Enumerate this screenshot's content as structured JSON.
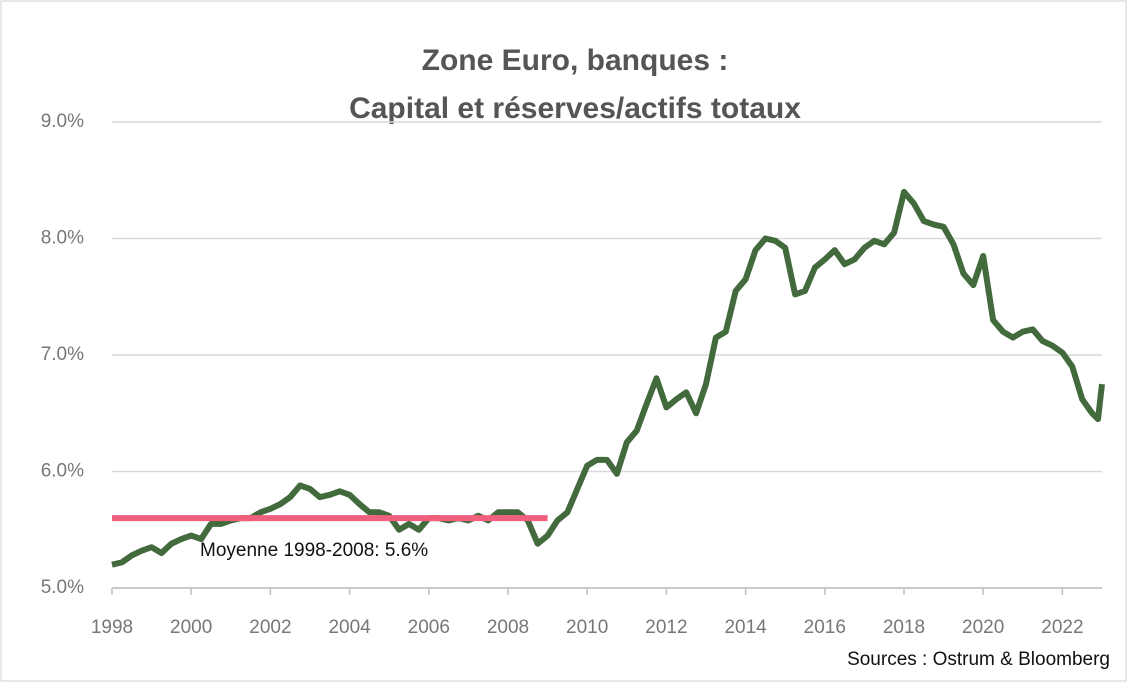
{
  "chart_data": {
    "type": "line",
    "title": "Zone Euro, banques :",
    "subtitle": "Capital et réserves/actifs totaux",
    "source": "Sources : Ostrum & Bloomberg",
    "x": [
      1998.0,
      1998.25,
      1998.5,
      1998.75,
      1999.0,
      1999.25,
      1999.5,
      1999.75,
      2000.0,
      2000.25,
      2000.5,
      2000.75,
      2001.0,
      2001.25,
      2001.5,
      2001.75,
      2002.0,
      2002.25,
      2002.5,
      2002.75,
      2003.0,
      2003.25,
      2003.5,
      2003.75,
      2004.0,
      2004.25,
      2004.5,
      2004.75,
      2005.0,
      2005.25,
      2005.5,
      2005.75,
      2006.0,
      2006.25,
      2006.5,
      2006.75,
      2007.0,
      2007.25,
      2007.5,
      2007.75,
      2008.0,
      2008.25,
      2008.5,
      2008.75,
      2009.0,
      2009.25,
      2009.5,
      2009.75,
      2010.0,
      2010.25,
      2010.5,
      2010.75,
      2011.0,
      2011.25,
      2011.5,
      2011.75,
      2012.0,
      2012.25,
      2012.5,
      2012.75,
      2013.0,
      2013.25,
      2013.5,
      2013.75,
      2014.0,
      2014.25,
      2014.5,
      2014.75,
      2015.0,
      2015.25,
      2015.5,
      2015.75,
      2016.0,
      2016.25,
      2016.5,
      2016.75,
      2017.0,
      2017.25,
      2017.5,
      2017.75,
      2018.0,
      2018.25,
      2018.5,
      2018.75,
      2019.0,
      2019.25,
      2019.5,
      2019.75,
      2020.0,
      2020.25,
      2020.5,
      2020.75,
      2021.0,
      2021.25,
      2021.5,
      2021.75,
      2022.0,
      2022.25,
      2022.5,
      2022.75,
      2022.9,
      2023.0
    ],
    "series": [
      {
        "color": "#436a3d",
        "values": [
          5.2,
          5.22,
          5.28,
          5.32,
          5.35,
          5.3,
          5.38,
          5.42,
          5.45,
          5.42,
          5.55,
          5.55,
          5.58,
          5.6,
          5.6,
          5.65,
          5.68,
          5.72,
          5.78,
          5.88,
          5.85,
          5.78,
          5.8,
          5.83,
          5.8,
          5.72,
          5.65,
          5.65,
          5.62,
          5.5,
          5.55,
          5.5,
          5.6,
          5.6,
          5.58,
          5.6,
          5.58,
          5.62,
          5.58,
          5.65,
          5.65,
          5.65,
          5.58,
          5.38,
          5.45,
          5.58,
          5.65,
          5.85,
          6.05,
          6.1,
          6.1,
          5.98,
          6.25,
          6.35,
          6.58,
          6.8,
          6.55,
          6.62,
          6.68,
          6.5,
          6.75,
          7.15,
          7.2,
          7.55,
          7.65,
          7.9,
          8.0,
          7.98,
          7.92,
          7.52,
          7.55,
          7.75,
          7.82,
          7.9,
          7.78,
          7.82,
          7.92,
          7.98,
          7.95,
          8.05,
          8.4,
          8.3,
          8.15,
          8.12,
          8.1,
          7.95,
          7.7,
          7.6,
          7.85,
          7.3,
          7.2,
          7.15,
          7.2,
          7.22,
          7.12,
          7.08,
          7.02,
          6.9,
          6.62,
          6.5,
          6.45,
          6.75
        ]
      }
    ],
    "reference_line": {
      "value": 5.6,
      "x": [
        1998,
        2009
      ],
      "color": "#f0607e",
      "label": "Moyenne 1998-2008: 5.6%"
    },
    "xlim": [
      1998,
      2023
    ],
    "xticks": [
      1998,
      2000,
      2002,
      2004,
      2006,
      2008,
      2010,
      2012,
      2014,
      2016,
      2018,
      2020,
      2022
    ],
    "ylim": [
      5,
      9
    ],
    "yticks": [
      {
        "value": 5,
        "label": "5.0%"
      },
      {
        "value": 6,
        "label": "6.0%"
      },
      {
        "value": 7,
        "label": "7.0%"
      },
      {
        "value": 8,
        "label": "8.0%"
      },
      {
        "value": 9,
        "label": "9.0%"
      }
    ],
    "grid": true
  }
}
